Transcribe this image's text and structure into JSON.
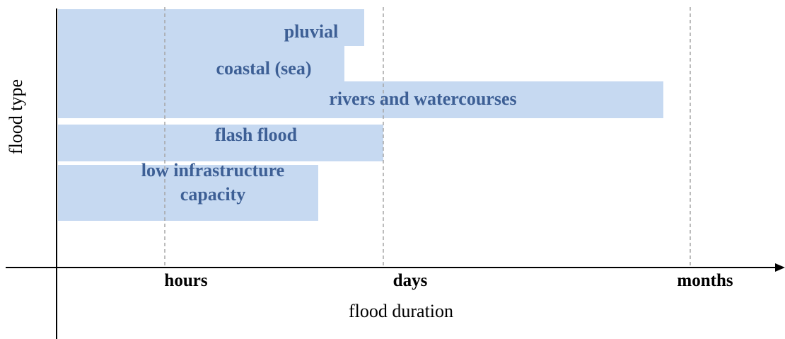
{
  "axes": {
    "y_label": "flood type",
    "x_label": "flood duration",
    "x_marks": [
      "hours",
      "days",
      "months"
    ]
  },
  "bars": [
    {
      "label": [
        "pluvial"
      ]
    },
    {
      "label": [
        "coastal (sea)"
      ]
    },
    {
      "label": [
        "rivers and watercourses"
      ]
    },
    {
      "label": [
        "flash flood"
      ]
    },
    {
      "label": [
        "low infrastructure",
        "capacity"
      ]
    }
  ]
}
